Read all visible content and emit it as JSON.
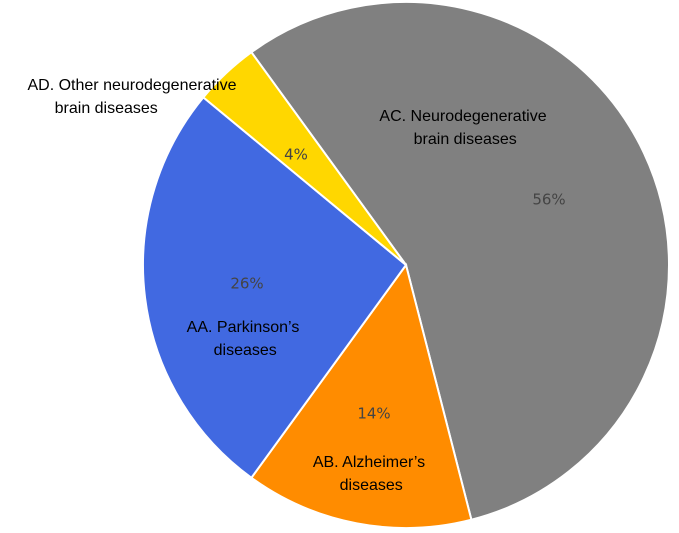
{
  "chart_data": {
    "type": "pie",
    "categories": [
      "AC. Neurodegenerative brain diseases",
      "AB. Alzheimer’s diseases",
      "AA. Parkinson’s diseases",
      "AD. Other neurodegenerative brain diseases"
    ],
    "values": [
      56,
      14,
      26,
      4
    ],
    "value_labels": [
      "56%",
      "14%",
      "26%",
      "4%"
    ],
    "colors": [
      "#808080",
      "#ff8c00",
      "#4169e1",
      "#ffd700"
    ]
  }
}
